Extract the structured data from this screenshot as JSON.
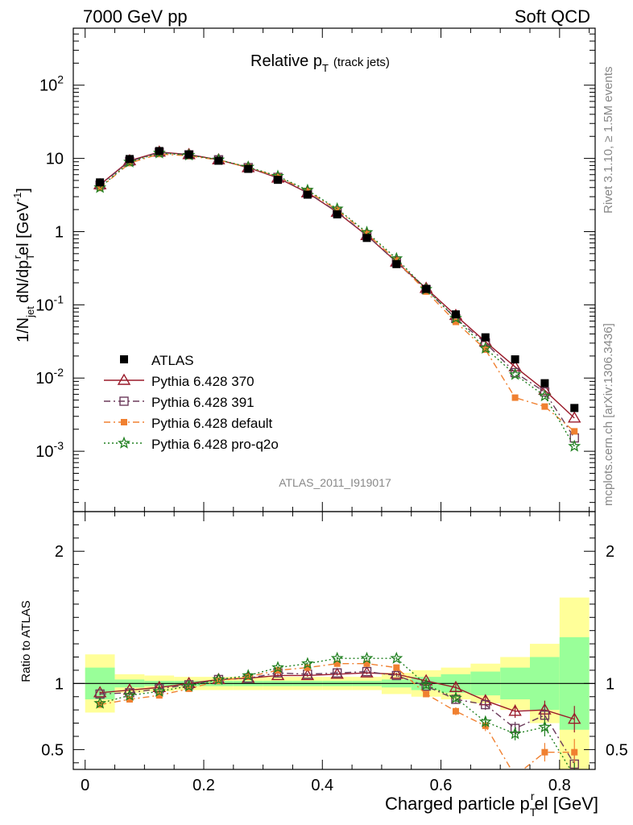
{
  "header": {
    "left": "7000 GeV pp",
    "right": "Soft QCD"
  },
  "side_labels": {
    "rivet": "Rivet 3.1.10, ≥ 1.5M events",
    "mcplots": "mcplots.cern.ch [arXiv:1306.3436]"
  },
  "chart_data": {
    "type": "line",
    "title": {
      "main": "Relative p",
      "sub": "T",
      "suffix": "(track jets)"
    },
    "analysis_label": "ATLAS_2011_I919017",
    "xlabel": "Charged particle p",
    "xlabel_sub": "T",
    "xlabel_sup": "r",
    "xlabel_suffix": "el [GeV]",
    "ylabel_top": "1/N",
    "ylabel_top_sub1": "jet",
    "ylabel_top_mid": "dN/dp",
    "ylabel_top_sub2": "T",
    "ylabel_top_sup2": "r",
    "ylabel_top_suffix": "el [GeV",
    "ylabel_top_sup3": "-1",
    "ylabel_top_end": "]",
    "ylabel_bottom": "Ratio to ATLAS",
    "xlim": [
      -0.02,
      0.86
    ],
    "ylim_top": [
      0.00015,
      600
    ],
    "ylim_bottom": [
      0.35,
      2.3
    ],
    "ylog_top": true,
    "x_ticks": [
      "0",
      "0.2",
      "0.4",
      "0.6",
      "0.8"
    ],
    "y_ticks_top": [
      {
        "base": "10",
        "exp": "-3",
        "value": 0.001
      },
      {
        "base": "10",
        "exp": "-2",
        "value": 0.01
      },
      {
        "base": "10",
        "exp": "-1",
        "value": 0.1
      },
      {
        "base": "1",
        "exp": "",
        "value": 1
      },
      {
        "base": "10",
        "exp": "",
        "value": 10
      },
      {
        "base": "10",
        "exp": "2",
        "value": 100
      }
    ],
    "y_ticks_bottom": [
      "0.5",
      "1",
      "2"
    ],
    "x": [
      0.025,
      0.075,
      0.125,
      0.175,
      0.225,
      0.275,
      0.325,
      0.375,
      0.425,
      0.475,
      0.525,
      0.575,
      0.625,
      0.675,
      0.725,
      0.775,
      0.825
    ],
    "data": {
      "name": "ATLAS",
      "values": [
        4.7,
        9.8,
        12.6,
        11.3,
        9.3,
        7.2,
        5.1,
        3.2,
        1.72,
        0.82,
        0.36,
        0.165,
        0.074,
        0.036,
        0.018,
        0.0085,
        0.0039
      ],
      "band_stat": [
        0.12,
        0.03,
        0.02,
        0.02,
        0.02,
        0.02,
        0.02,
        0.02,
        0.02,
        0.02,
        0.03,
        0.05,
        0.07,
        0.09,
        0.12,
        0.2,
        0.35
      ],
      "band_total": [
        0.22,
        0.07,
        0.06,
        0.05,
        0.05,
        0.05,
        0.05,
        0.05,
        0.05,
        0.05,
        0.08,
        0.1,
        0.12,
        0.15,
        0.2,
        0.3,
        0.65
      ]
    },
    "series": [
      {
        "name": "Pythia 6.428 370",
        "color": "#9a1a2a",
        "line": "solid",
        "marker": "triangle-open",
        "ratio": [
          0.93,
          0.95,
          0.97,
          1.0,
          1.03,
          1.04,
          1.06,
          1.06,
          1.07,
          1.08,
          1.07,
          1.02,
          0.97,
          0.87,
          0.79,
          0.8,
          0.73
        ],
        "ratio_err": [
          0.01,
          0.01,
          0.01,
          0.01,
          0.01,
          0.01,
          0.01,
          0.01,
          0.01,
          0.01,
          0.01,
          0.02,
          0.03,
          0.04,
          0.05,
          0.07,
          0.1
        ]
      },
      {
        "name": "Pythia 6.428 391",
        "color": "#6b3a5a",
        "line": "dashdot",
        "marker": "square-open",
        "ratio": [
          0.92,
          0.93,
          0.96,
          0.99,
          1.03,
          1.04,
          1.08,
          1.07,
          1.08,
          1.09,
          1.06,
          0.98,
          0.88,
          0.84,
          0.66,
          0.76,
          0.39
        ],
        "ratio_err": [
          0.01,
          0.01,
          0.01,
          0.01,
          0.01,
          0.01,
          0.01,
          0.01,
          0.01,
          0.01,
          0.01,
          0.02,
          0.03,
          0.04,
          0.05,
          0.07,
          0.1
        ]
      },
      {
        "name": "Pythia 6.428 default",
        "color": "#f08030",
        "line": "dashdot",
        "marker": "square-filled",
        "ratio": [
          0.84,
          0.88,
          0.91,
          0.96,
          1.02,
          1.05,
          1.1,
          1.12,
          1.15,
          1.15,
          1.12,
          0.92,
          0.79,
          0.68,
          0.3,
          0.48,
          0.48
        ],
        "ratio_err": [
          0.01,
          0.01,
          0.01,
          0.01,
          0.01,
          0.01,
          0.01,
          0.01,
          0.01,
          0.01,
          0.01,
          0.02,
          0.03,
          0.04,
          0.05,
          0.07,
          0.1
        ]
      },
      {
        "name": "Pythia 6.428 pro-q2o",
        "color": "#208020",
        "line": "dotted",
        "marker": "star-open",
        "ratio": [
          0.85,
          0.91,
          0.94,
          0.98,
          1.03,
          1.06,
          1.12,
          1.15,
          1.19,
          1.19,
          1.19,
          0.99,
          0.89,
          0.71,
          0.62,
          0.67,
          0.3
        ],
        "ratio_err": [
          0.01,
          0.01,
          0.01,
          0.01,
          0.01,
          0.01,
          0.01,
          0.01,
          0.01,
          0.01,
          0.01,
          0.02,
          0.03,
          0.04,
          0.05,
          0.07,
          0.1
        ]
      }
    ],
    "legend_position": "lower-left",
    "colors": {
      "band_stat": "#99ff99",
      "band_total": "#ffff99",
      "data": "#000000"
    }
  }
}
